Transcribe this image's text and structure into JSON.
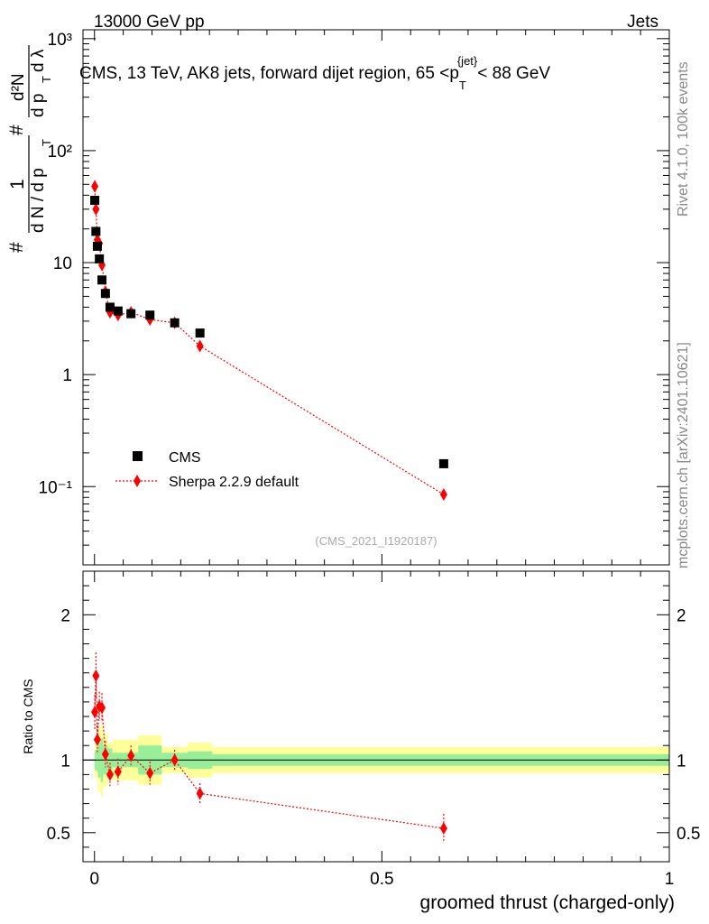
{
  "header": {
    "energy_label": "13000 GeV pp",
    "category_label": "Jets",
    "analysis_id": "(CMS_2021_I1920187)",
    "side_rivet": "Rivet 4.1.0,  100k events",
    "side_site": "mcplots.cern.ch [arXiv:2401.10621]"
  },
  "chart_data": [
    {
      "type": "scatter",
      "panel": "main",
      "title": "CMS, 13 TeV, AK8 jets, forward dijet region, 65 <p_T^{jet}< 88 GeV",
      "title_parts": {
        "before": "CMS, 13 TeV, AK8 jets, forward dijet region, 65 <p",
        "sub": "T",
        "sup": "{jet}",
        "after": "< 88 GeV"
      },
      "ylabel": "1/(dN/dpT) d²N/(dpT dλ)",
      "ylabel_parts": {
        "hash": "#",
        "one": "1",
        "denominator": "d N / d p",
        "sub_t": "T",
        "numerator": "d²N",
        "den2": "d p",
        "dlambda": "d λ"
      },
      "yscale": "log",
      "ylim": [
        0.02,
        1200
      ],
      "xlim": [
        -0.02,
        1.0
      ],
      "ytick_labels": [
        "10⁻¹",
        "1",
        "10",
        "10²",
        "10³"
      ],
      "ytick_values": [
        0.1,
        1,
        10,
        100,
        1000
      ],
      "legend_position": "mid-left",
      "series": [
        {
          "name": "CMS",
          "color": "#000000",
          "marker": "square",
          "x": [
            0.0005,
            0.0025,
            0.005,
            0.0085,
            0.013,
            0.019,
            0.027,
            0.041,
            0.0635,
            0.0965,
            0.1395,
            0.1835,
            0.6075
          ],
          "y": [
            36,
            19,
            14,
            10.8,
            7.0,
            5.3,
            4.0,
            3.7,
            3.5,
            3.4,
            2.9,
            2.35,
            0.16
          ]
        },
        {
          "name": "Sherpa 2.2.9 default",
          "color": "#ff0000",
          "marker": "diamond",
          "line": "dotted",
          "x": [
            0.0005,
            0.0025,
            0.005,
            0.0085,
            0.013,
            0.019,
            0.027,
            0.041,
            0.0635,
            0.0965,
            0.1395,
            0.1835,
            0.6075
          ],
          "y": [
            48,
            30,
            16,
            14.8,
            9.5,
            5.5,
            3.6,
            3.4,
            3.6,
            3.1,
            2.9,
            1.8,
            0.085
          ],
          "yerr": [
            0.12,
            0.1,
            0.08,
            0.07,
            0.07,
            0.06,
            0.06,
            0.07,
            0.06,
            0.06,
            0.06,
            0.07,
            0.09
          ]
        }
      ]
    },
    {
      "type": "scatter",
      "panel": "ratio",
      "ylabel": "Ratio to CMS",
      "xlabel": "groomed thrust (charged-only)",
      "ylim": [
        0.3,
        2.3
      ],
      "xlim": [
        -0.02,
        1.0
      ],
      "ytick_labels": [
        "0.5",
        "1",
        "2"
      ],
      "ytick_values": [
        0.5,
        1,
        2
      ],
      "xtick_labels": [
        "0",
        "0.5",
        "1"
      ],
      "xtick_values": [
        0,
        0.5,
        1
      ],
      "bins": [
        {
          "lo": 0.0,
          "hi": 0.001,
          "stat": 0.06,
          "tot": 0.12
        },
        {
          "lo": 0.001,
          "hi": 0.004,
          "stat": 0.07,
          "tot": 0.12
        },
        {
          "lo": 0.004,
          "hi": 0.006,
          "stat": 0.08,
          "tot": 0.14
        },
        {
          "lo": 0.006,
          "hi": 0.011,
          "stat": 0.12,
          "tot": 0.22
        },
        {
          "lo": 0.011,
          "hi": 0.015,
          "stat": 0.15,
          "tot": 0.25
        },
        {
          "lo": 0.015,
          "hi": 0.023,
          "stat": 0.1,
          "tot": 0.18
        },
        {
          "lo": 0.023,
          "hi": 0.031,
          "stat": 0.08,
          "tot": 0.12
        },
        {
          "lo": 0.031,
          "hi": 0.051,
          "stat": 0.05,
          "tot": 0.14
        },
        {
          "lo": 0.051,
          "hi": 0.076,
          "stat": 0.05,
          "tot": 0.14
        },
        {
          "lo": 0.076,
          "hi": 0.117,
          "stat": 0.1,
          "tot": 0.17
        },
        {
          "lo": 0.117,
          "hi": 0.162,
          "stat": 0.05,
          "tot": 0.09
        },
        {
          "lo": 0.162,
          "hi": 0.205,
          "stat": 0.06,
          "tot": 0.12
        },
        {
          "lo": 0.205,
          "hi": 1.0,
          "stat": 0.04,
          "tot": 0.09
        }
      ],
      "series": [
        {
          "name": "Sherpa 2.2.9 default",
          "color": "#ff0000",
          "x": [
            0.0005,
            0.0025,
            0.005,
            0.0085,
            0.013,
            0.019,
            0.027,
            0.041,
            0.0635,
            0.0965,
            0.1395,
            0.1835,
            0.6075
          ],
          "y": [
            1.33,
            1.58,
            1.14,
            1.37,
            1.36,
            1.04,
            0.9,
            0.92,
            1.03,
            0.91,
            1.0,
            0.77,
            0.53
          ],
          "yerr": [
            0.12,
            0.16,
            0.1,
            0.1,
            0.1,
            0.09,
            0.08,
            0.09,
            0.07,
            0.08,
            0.07,
            0.07,
            0.1
          ]
        }
      ],
      "reference_line": 1.0
    }
  ],
  "colors": {
    "cms": "#000000",
    "sherpa": "#ff0000",
    "band_stat": "#99ee99",
    "band_total": "#ffff99",
    "side_text": "#888888"
  }
}
